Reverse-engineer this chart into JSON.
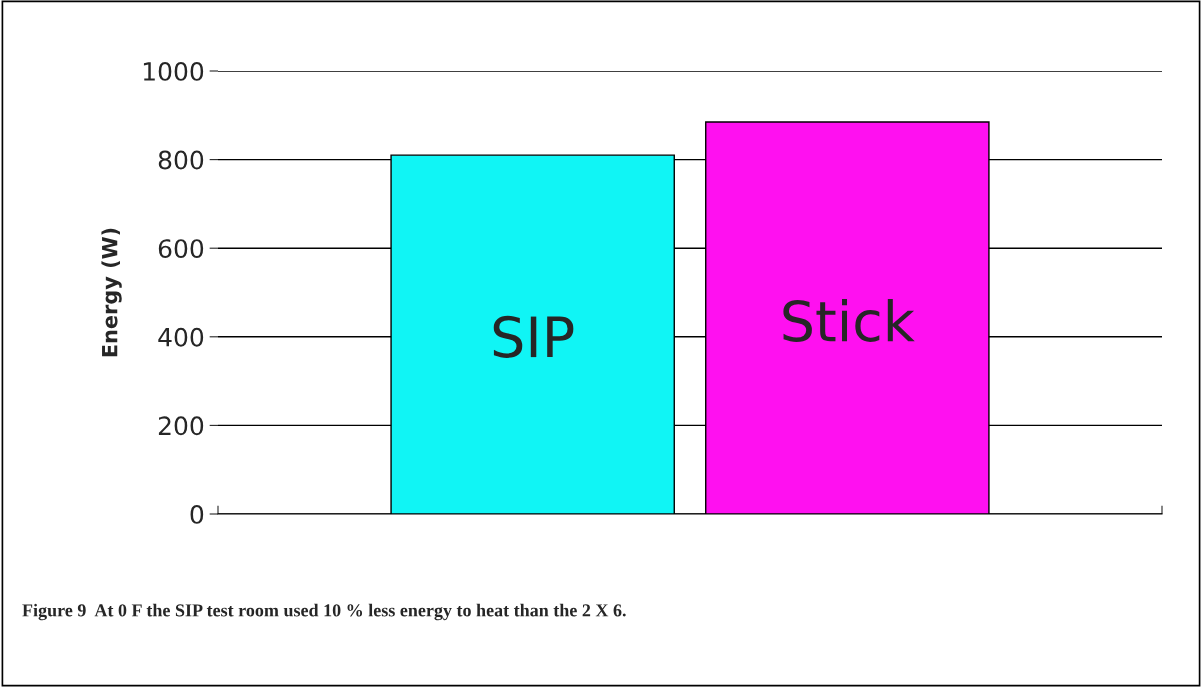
{
  "chart_data": {
    "type": "bar",
    "categories": [
      "SIP",
      "Stick"
    ],
    "values": [
      810,
      885
    ],
    "colors": [
      "#10f5f5",
      "#ff10f0"
    ],
    "ylabel": "Energy (W)",
    "ylim": [
      0,
      1000
    ],
    "yticks": [
      0,
      200,
      400,
      600,
      800,
      1000
    ],
    "grid": "y",
    "tick_labels": "y",
    "annotations": [
      "Figure 9  At 0 F the SIP test room used 10 % less energy to heat than the 2 X 6."
    ]
  }
}
